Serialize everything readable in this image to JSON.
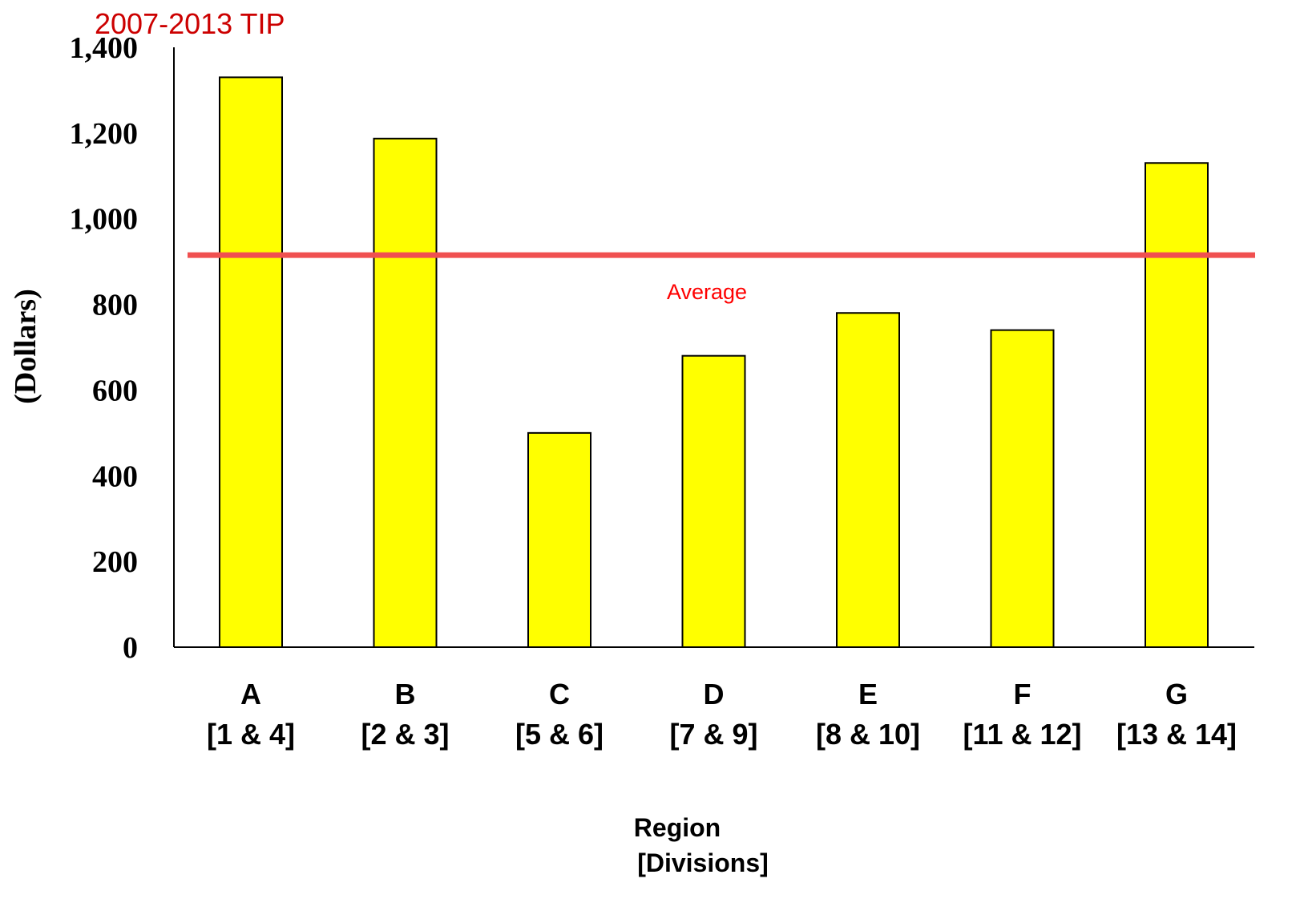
{
  "chart_data": {
    "type": "bar",
    "title": "2007-2013 TIP",
    "xlabel_lines": [
      "Region",
      "[Divisions]"
    ],
    "ylabel": "(Dollars)",
    "ylim": [
      0,
      1400
    ],
    "yticks": [
      0,
      200,
      400,
      600,
      800,
      1000,
      1200,
      1400
    ],
    "ytick_labels": [
      "0",
      "200",
      "400",
      "600",
      "800",
      "1,000",
      "1,200",
      "1,400"
    ],
    "grid": false,
    "categories": [
      {
        "name": "A",
        "divisions": "[1 & 4]"
      },
      {
        "name": "B",
        "divisions": "[2 & 3]"
      },
      {
        "name": "C",
        "divisions": "[5 & 6]"
      },
      {
        "name": "D",
        "divisions": "[7 & 9]"
      },
      {
        "name": "E",
        "divisions": "[8 & 10]"
      },
      {
        "name": "F",
        "divisions": "[11 & 12]"
      },
      {
        "name": "G",
        "divisions": "[13 & 14]"
      }
    ],
    "values": [
      1330,
      1187,
      500,
      680,
      780,
      740,
      1130
    ],
    "average": {
      "label": "Average",
      "value": 915
    },
    "colors": {
      "bar_fill": "#ffff00",
      "bar_stroke": "#000000",
      "average_line": "#f05050",
      "average_label": "#ff0000",
      "title": "#cc0000",
      "text": "#000000"
    }
  }
}
